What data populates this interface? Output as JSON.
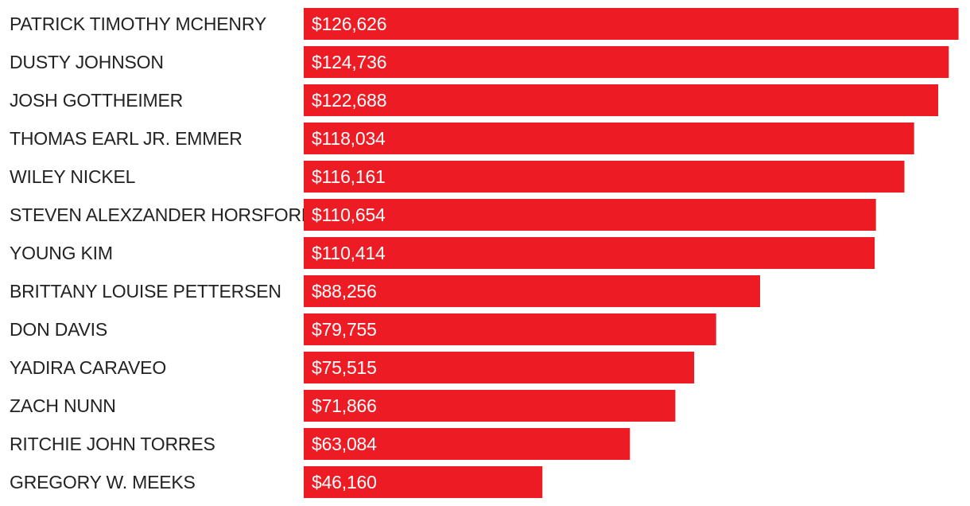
{
  "colors": {
    "bar": "#ed1c24",
    "label_text": "#222222",
    "value_text": "#ffffff",
    "background": "#ffffff"
  },
  "chart_data": {
    "type": "bar",
    "orientation": "horizontal",
    "title": "",
    "xlabel": "",
    "ylabel": "",
    "grid": false,
    "legend": "none",
    "xlim": [
      0,
      127000
    ],
    "categories": [
      "PATRICK TIMOTHY MCHENRY",
      "DUSTY JOHNSON",
      "JOSH GOTTHEIMER",
      "THOMAS EARL JR. EMMER",
      "WILEY NICKEL",
      "STEVEN ALEXZANDER HORSFORD",
      "YOUNG KIM",
      "BRITTANY LOUISE PETTERSEN",
      "DON DAVIS",
      "YADIRA CARAVEO",
      "ZACH NUNN",
      "RITCHIE JOHN TORRES",
      "GREGORY W. MEEKS"
    ],
    "values": [
      126626,
      124736,
      122688,
      118034,
      116161,
      110654,
      110414,
      88256,
      79755,
      75515,
      71866,
      63084,
      46160
    ],
    "value_labels": [
      "$126,626",
      "$124,736",
      "$122,688",
      "$118,034",
      "$116,161",
      "$110,654",
      "$110,414",
      "$88,256",
      "$79,755",
      "$75,515",
      "$71,866",
      "$63,084",
      "$46,160"
    ]
  }
}
